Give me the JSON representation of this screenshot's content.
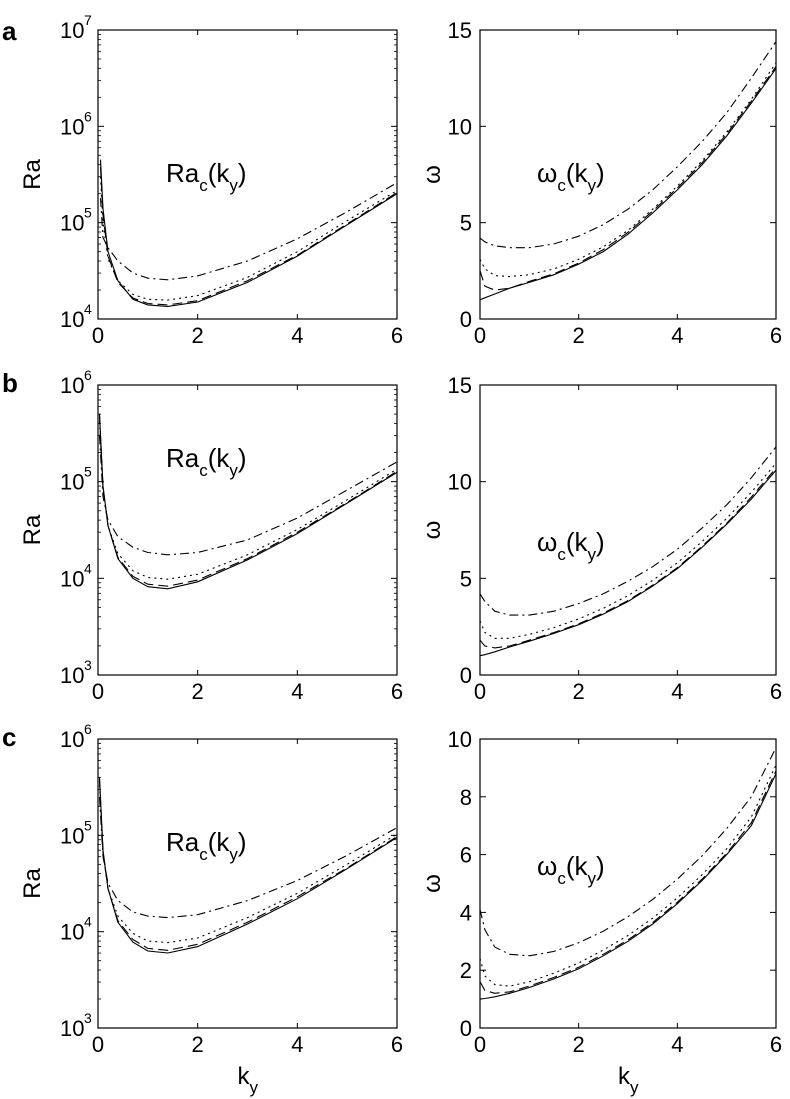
{
  "figure": {
    "panel_letters": [
      "a",
      "b",
      "c"
    ],
    "x_axis_label": "k",
    "x_axis_label_sub": "y"
  },
  "chart_data": [
    {
      "type": "line",
      "row": 0,
      "col": 0,
      "panel": "a",
      "ylabel": "Ra",
      "annotation": "Ra",
      "annotation_sub1": "c",
      "annotation_mid": "(k",
      "annotation_sub2": "y",
      "annotation_end": ")",
      "yscale": "log",
      "ylim": [
        10000,
        10000000
      ],
      "xlim": [
        0,
        6
      ],
      "xticks": [
        "0",
        "2",
        "4",
        "6"
      ],
      "yticks_base": [
        "10",
        "10",
        "10",
        "10"
      ],
      "yticks_exp": [
        "4",
        "5",
        "6",
        "7"
      ],
      "x": [
        0.05,
        0.1,
        0.2,
        0.4,
        0.7,
        1.0,
        1.4,
        2.0,
        3.0,
        4.0,
        5.0,
        6.0
      ],
      "series": [
        {
          "style": "solid",
          "values": [
            450000,
            140000,
            50000,
            25000,
            16000,
            14000,
            13500,
            15000,
            24000,
            45000,
            95000,
            200000
          ]
        },
        {
          "style": "dashed",
          "values": [
            380000,
            120000,
            45000,
            24000,
            16500,
            14500,
            14000,
            15500,
            25000,
            46000,
            97000,
            205000
          ]
        },
        {
          "style": "dotted",
          "values": [
            300000,
            100000,
            42000,
            25000,
            18000,
            16000,
            15700,
            17500,
            27000,
            50000,
            105000,
            215000
          ]
        },
        {
          "style": "dashdot",
          "values": [
            180000,
            70000,
            55000,
            40000,
            30000,
            26500,
            25500,
            28000,
            40000,
            68000,
            130000,
            260000
          ]
        }
      ]
    },
    {
      "type": "line",
      "row": 0,
      "col": 1,
      "panel": "a",
      "ylabel": "ω",
      "annotation": "ω",
      "annotation_sub1": "c",
      "annotation_mid": "(k",
      "annotation_sub2": "y",
      "annotation_end": ")",
      "yscale": "linear",
      "ylim": [
        0,
        15
      ],
      "xlim": [
        0,
        6
      ],
      "xticks": [
        "0",
        "2",
        "4",
        "6"
      ],
      "yticks": [
        "0",
        "5",
        "10",
        "15"
      ],
      "ytick_values": [
        0,
        5,
        10,
        15
      ],
      "x": [
        0.0,
        0.1,
        0.3,
        0.6,
        1.0,
        1.5,
        2.0,
        2.5,
        3.0,
        3.5,
        4.0,
        4.5,
        5.0,
        5.5,
        6.0
      ],
      "series": [
        {
          "style": "solid",
          "values": [
            1.0,
            1.1,
            1.3,
            1.6,
            1.9,
            2.3,
            2.85,
            3.5,
            4.4,
            5.5,
            6.7,
            8.0,
            9.5,
            11.2,
            13.0
          ]
        },
        {
          "style": "dashed",
          "values": [
            2.5,
            1.7,
            1.5,
            1.6,
            1.95,
            2.35,
            2.9,
            3.6,
            4.5,
            5.6,
            6.8,
            8.1,
            9.6,
            11.3,
            13.1
          ]
        },
        {
          "style": "dotted",
          "values": [
            3.1,
            2.6,
            2.25,
            2.2,
            2.3,
            2.6,
            3.1,
            3.75,
            4.6,
            5.7,
            6.9,
            8.2,
            9.7,
            11.4,
            13.3
          ]
        },
        {
          "style": "dashdot",
          "values": [
            4.2,
            4.0,
            3.8,
            3.7,
            3.7,
            3.9,
            4.3,
            4.9,
            5.7,
            6.7,
            7.9,
            9.2,
            10.7,
            12.5,
            14.4
          ]
        }
      ]
    },
    {
      "type": "line",
      "row": 1,
      "col": 0,
      "panel": "b",
      "ylabel": "Ra",
      "annotation": "Ra",
      "annotation_sub1": "c",
      "annotation_mid": "(k",
      "annotation_sub2": "y",
      "annotation_end": ")",
      "yscale": "log",
      "ylim": [
        1000,
        1000000
      ],
      "xlim": [
        0,
        6
      ],
      "xticks": [
        "0",
        "2",
        "4",
        "6"
      ],
      "yticks_base": [
        "10",
        "10",
        "10",
        "10"
      ],
      "yticks_exp": [
        "3",
        "4",
        "5",
        "6"
      ],
      "x": [
        0.03,
        0.1,
        0.2,
        0.4,
        0.7,
        1.0,
        1.4,
        2.0,
        3.0,
        4.0,
        5.0,
        6.0
      ],
      "series": [
        {
          "style": "solid",
          "values": [
            500000,
            90000,
            35000,
            16000,
            10000,
            8200,
            7800,
            9200,
            15500,
            29000,
            60000,
            125000
          ]
        },
        {
          "style": "dashed",
          "values": [
            480000,
            88000,
            35000,
            16500,
            10500,
            8700,
            8300,
            9600,
            16000,
            30000,
            61000,
            128000
          ]
        },
        {
          "style": "dotted",
          "values": [
            420000,
            82000,
            35000,
            18000,
            12000,
            10200,
            9800,
            11000,
            17500,
            32000,
            65000,
            135000
          ]
        },
        {
          "style": "dashdot",
          "values": [
            300000,
            70000,
            40000,
            27000,
            21000,
            18500,
            17500,
            18500,
            25000,
            42000,
            82000,
            160000
          ]
        }
      ]
    },
    {
      "type": "line",
      "row": 1,
      "col": 1,
      "panel": "b",
      "ylabel": "ω",
      "annotation": "ω",
      "annotation_sub1": "c",
      "annotation_mid": "(k",
      "annotation_sub2": "y",
      "annotation_end": ")",
      "yscale": "linear",
      "ylim": [
        0,
        15
      ],
      "xlim": [
        0,
        6
      ],
      "xticks": [
        "0",
        "2",
        "4",
        "6"
      ],
      "yticks": [
        "0",
        "5",
        "10",
        "15"
      ],
      "ytick_values": [
        0,
        5,
        10,
        15
      ],
      "x": [
        0.0,
        0.1,
        0.3,
        0.6,
        1.0,
        1.5,
        2.0,
        2.5,
        3.0,
        3.5,
        4.0,
        4.5,
        5.0,
        5.5,
        6.0
      ],
      "series": [
        {
          "style": "solid",
          "values": [
            1.0,
            1.05,
            1.2,
            1.45,
            1.75,
            2.15,
            2.6,
            3.15,
            3.8,
            4.6,
            5.5,
            6.6,
            7.8,
            9.1,
            10.6
          ]
        },
        {
          "style": "dashed",
          "values": [
            1.8,
            1.5,
            1.4,
            1.5,
            1.8,
            2.2,
            2.65,
            3.2,
            3.85,
            4.65,
            5.55,
            6.65,
            7.85,
            9.2,
            10.7
          ]
        },
        {
          "style": "dotted",
          "values": [
            2.8,
            2.2,
            1.9,
            1.9,
            2.1,
            2.45,
            2.9,
            3.45,
            4.1,
            4.9,
            5.8,
            6.9,
            8.1,
            9.45,
            10.95
          ]
        },
        {
          "style": "dashdot",
          "values": [
            4.2,
            3.8,
            3.3,
            3.1,
            3.1,
            3.3,
            3.7,
            4.2,
            4.85,
            5.6,
            6.5,
            7.6,
            8.8,
            10.2,
            11.8
          ]
        }
      ]
    },
    {
      "type": "line",
      "row": 2,
      "col": 0,
      "panel": "c",
      "ylabel": "Ra",
      "annotation": "Ra",
      "annotation_sub1": "c",
      "annotation_mid": "(k",
      "annotation_sub2": "y",
      "annotation_end": ")",
      "yscale": "log",
      "ylim": [
        1000,
        1000000
      ],
      "xlim": [
        0,
        6
      ],
      "xticks": [
        "0",
        "2",
        "4",
        "6"
      ],
      "yticks_base": [
        "10",
        "10",
        "10",
        "10"
      ],
      "yticks_exp": [
        "3",
        "4",
        "5",
        "6"
      ],
      "x": [
        0.03,
        0.1,
        0.2,
        0.4,
        0.7,
        1.0,
        1.4,
        2.0,
        3.0,
        4.0,
        5.0,
        6.0
      ],
      "series": [
        {
          "style": "solid",
          "values": [
            400000,
            70000,
            28000,
            12500,
            7800,
            6300,
            6000,
            7000,
            12000,
            22000,
            45000,
            95000
          ]
        },
        {
          "style": "dashed",
          "values": [
            380000,
            68000,
            28000,
            13000,
            8300,
            6700,
            6400,
            7400,
            12500,
            23000,
            46000,
            97000
          ]
        },
        {
          "style": "dotted",
          "values": [
            330000,
            64000,
            28000,
            14500,
            9600,
            8000,
            7700,
            8600,
            14000,
            25000,
            50000,
            103000
          ]
        },
        {
          "style": "dashdot",
          "values": [
            250000,
            60000,
            32000,
            21000,
            16000,
            14500,
            14000,
            15000,
            21000,
            34000,
            62000,
            120000
          ]
        }
      ]
    },
    {
      "type": "line",
      "row": 2,
      "col": 1,
      "panel": "c",
      "ylabel": "ω",
      "annotation": "ω",
      "annotation_sub1": "c",
      "annotation_mid": "(k",
      "annotation_sub2": "y",
      "annotation_end": ")",
      "yscale": "linear",
      "ylim": [
        0,
        10
      ],
      "xlim": [
        0,
        6
      ],
      "xticks": [
        "0",
        "2",
        "4",
        "6"
      ],
      "yticks": [
        "0",
        "2",
        "4",
        "6",
        "8",
        "10"
      ],
      "ytick_values": [
        0,
        2,
        4,
        6,
        8,
        10
      ],
      "x": [
        0.0,
        0.1,
        0.3,
        0.6,
        1.0,
        1.5,
        2.0,
        2.5,
        3.0,
        3.5,
        4.0,
        4.5,
        5.0,
        5.5,
        6.0
      ],
      "series": [
        {
          "style": "solid",
          "values": [
            1.0,
            1.02,
            1.08,
            1.2,
            1.4,
            1.7,
            2.05,
            2.5,
            3.0,
            3.6,
            4.3,
            5.1,
            6.0,
            7.0,
            8.8
          ]
        },
        {
          "style": "dashed",
          "values": [
            1.6,
            1.3,
            1.2,
            1.25,
            1.45,
            1.75,
            2.1,
            2.55,
            3.05,
            3.65,
            4.35,
            5.15,
            6.05,
            7.1,
            8.9
          ]
        },
        {
          "style": "dotted",
          "values": [
            2.4,
            1.8,
            1.5,
            1.45,
            1.6,
            1.9,
            2.25,
            2.7,
            3.2,
            3.8,
            4.5,
            5.3,
            6.2,
            7.3,
            9.1
          ]
        },
        {
          "style": "dashdot",
          "values": [
            4.1,
            3.4,
            2.8,
            2.55,
            2.5,
            2.65,
            2.95,
            3.35,
            3.85,
            4.45,
            5.15,
            5.95,
            6.9,
            8.0,
            9.7
          ]
        }
      ]
    }
  ]
}
